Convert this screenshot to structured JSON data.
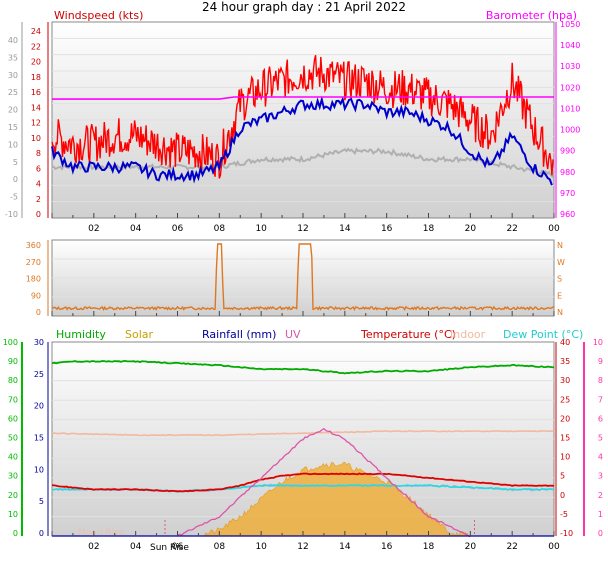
{
  "title": "24 hour graph day : 21 April 2022",
  "x_ticks": [
    "02",
    "04",
    "06",
    "08",
    "10",
    "12",
    "14",
    "16",
    "18",
    "20",
    "22",
    "00"
  ],
  "colors": {
    "windspeed": "#ff0000",
    "windavg": "#0000cc",
    "windgust_min": "#b0b0b0",
    "barometer": "#ff00ff",
    "direction": "#dd7722",
    "humidity": "#00aa00",
    "solar": "#f2a928",
    "rain": "#000099",
    "uv": "#dd55aa",
    "temperature": "#dd0000",
    "indoor": "#f2b8a0",
    "dew_point": "#22dddd",
    "axis_green": "#00bb00",
    "axis_pink": "#ff33aa",
    "axis_red": "#cc0000"
  },
  "chart_data": [
    {
      "type": "line",
      "title": "",
      "legend": [
        {
          "name": "Windspeed (kts)"
        },
        {
          "name": "Barometer (hpa)"
        }
      ],
      "left_axis_ticks": [
        "24",
        "22",
        "20",
        "18",
        "16",
        "14",
        "12",
        "10",
        "8",
        "6",
        "4",
        "2",
        "0"
      ],
      "outer_left_ticks": [
        "40",
        "35",
        "30",
        "25",
        "20",
        "15",
        "10",
        "5",
        "0",
        "-5",
        "-10"
      ],
      "right_axis_ticks": [
        "1050",
        "1040",
        "1030",
        "1020",
        "1010",
        "1000",
        "990",
        "980",
        "970",
        "960"
      ],
      "ylim": [
        0,
        24
      ],
      "y2lim": [
        960,
        1050
      ],
      "x_hours": [
        0,
        24
      ],
      "series": [
        {
          "name": "windspeed",
          "x": [
            0,
            1,
            2,
            3,
            4,
            5,
            6,
            7,
            8,
            9,
            10,
            11,
            12,
            13,
            14,
            15,
            16,
            17,
            18,
            19,
            20,
            21,
            22,
            23,
            24
          ],
          "values": [
            10,
            9,
            9,
            10,
            10,
            9,
            8,
            8,
            7,
            14,
            16,
            17,
            18,
            18,
            17,
            17,
            16,
            16,
            15,
            14,
            12,
            10,
            17,
            11,
            6
          ]
        },
        {
          "name": "wind_average",
          "x": [
            0,
            1,
            2,
            3,
            4,
            5,
            6,
            7,
            8,
            9,
            10,
            11,
            12,
            13,
            14,
            15,
            16,
            17,
            18,
            19,
            20,
            21,
            22,
            23,
            24
          ],
          "values": [
            8,
            6,
            6,
            6,
            6,
            5,
            5,
            5,
            6,
            11,
            12,
            13,
            14,
            14,
            14,
            14,
            13,
            13,
            12,
            11,
            8,
            6,
            10,
            6,
            4
          ]
        },
        {
          "name": "wind_min",
          "x": [
            0,
            2,
            4,
            6,
            8,
            10,
            12,
            14,
            16,
            18,
            20,
            22,
            24
          ],
          "values": [
            6,
            6,
            6,
            6,
            6,
            7,
            7,
            8,
            8,
            7,
            7,
            6,
            5
          ]
        },
        {
          "name": "barometer",
          "x": [
            0,
            8,
            8.7,
            24
          ],
          "values": [
            1015,
            1015,
            1016,
            1016
          ]
        }
      ]
    },
    {
      "type": "line",
      "title": "",
      "left_axis_ticks": [
        "360",
        "270",
        "180",
        "90",
        "0"
      ],
      "right_axis_ticks": [
        "N",
        "W",
        "S",
        "E",
        "N"
      ],
      "ylim": [
        0,
        360
      ],
      "series": [
        {
          "name": "wind_direction",
          "x": [
            0,
            7.8,
            7.9,
            8.1,
            8.2,
            11.7,
            11.8,
            12.4,
            12.5,
            24
          ],
          "values": [
            20,
            20,
            360,
            360,
            20,
            20,
            360,
            360,
            20,
            20
          ]
        }
      ]
    },
    {
      "type": "area",
      "title": "",
      "legend": [
        {
          "name": "Humidity"
        },
        {
          "name": "Solar"
        },
        {
          "name": "Rainfall (mm)"
        },
        {
          "name": "UV"
        },
        {
          "name": "Temperature (°C)"
        },
        {
          "name": "Indoor"
        },
        {
          "name": "Dew Point (°C)"
        }
      ],
      "left_outer_ticks": [
        "100",
        "90",
        "80",
        "70",
        "60",
        "50",
        "40",
        "30",
        "20",
        "10",
        "0"
      ],
      "left_inner_ticks": [
        "30",
        "25",
        "20",
        "15",
        "10",
        "5",
        "0"
      ],
      "right_inner_ticks": [
        "40",
        "35",
        "30",
        "25",
        "20",
        "15",
        "10",
        "5",
        "0",
        "-5",
        "-10"
      ],
      "right_outer_ticks": [
        "10",
        "9",
        "8",
        "7",
        "6",
        "5",
        "4",
        "3",
        "2",
        "1",
        "0"
      ],
      "x_hours": [
        0,
        24
      ],
      "annotations": [
        "Sun Rise",
        "Moon Rise"
      ],
      "series": [
        {
          "name": "humidity",
          "x": [
            0,
            1,
            2,
            4,
            6,
            8,
            10,
            12,
            13,
            14,
            16,
            18,
            20,
            22,
            24
          ],
          "values": [
            89,
            90,
            90,
            90,
            89,
            88,
            86,
            86,
            85,
            84,
            85,
            85,
            87,
            88,
            87
          ]
        },
        {
          "name": "solar",
          "x": [
            6,
            7,
            8,
            9,
            10,
            11,
            12,
            13,
            14,
            15,
            16,
            17,
            18,
            19,
            20
          ],
          "values": [
            0,
            0,
            3,
            10,
            19,
            28,
            34,
            37,
            37,
            32,
            28,
            20,
            11,
            2,
            0
          ]
        },
        {
          "name": "temperature",
          "x": [
            0,
            2,
            4,
            6,
            8,
            9,
            10,
            11,
            12,
            14,
            16,
            17,
            18,
            20,
            22,
            24
          ],
          "values": [
            3,
            2,
            2,
            1.5,
            2,
            3,
            4.5,
            5.5,
            6,
            6,
            6,
            5.5,
            5,
            4,
            3,
            3
          ]
        },
        {
          "name": "dew_point",
          "x": [
            0,
            2,
            4,
            6,
            8,
            10,
            12,
            14,
            16,
            18,
            20,
            22,
            24
          ],
          "values": [
            2,
            2,
            2,
            1.5,
            2,
            3,
            3,
            3,
            3,
            3,
            2.5,
            2,
            2
          ]
        },
        {
          "name": "indoor",
          "x": [
            0,
            4,
            8,
            12,
            16,
            20,
            24
          ],
          "values": [
            16.5,
            16,
            16,
            16.5,
            17,
            17,
            17
          ]
        },
        {
          "name": "uv",
          "x": [
            6,
            8,
            10,
            12,
            13,
            14,
            16,
            18,
            20
          ],
          "values": [
            0,
            1,
            3,
            5,
            5.5,
            5,
            3,
            1,
            0
          ]
        },
        {
          "name": "rainfall",
          "x": [
            0,
            24
          ],
          "values": [
            0,
            0
          ]
        }
      ]
    }
  ]
}
